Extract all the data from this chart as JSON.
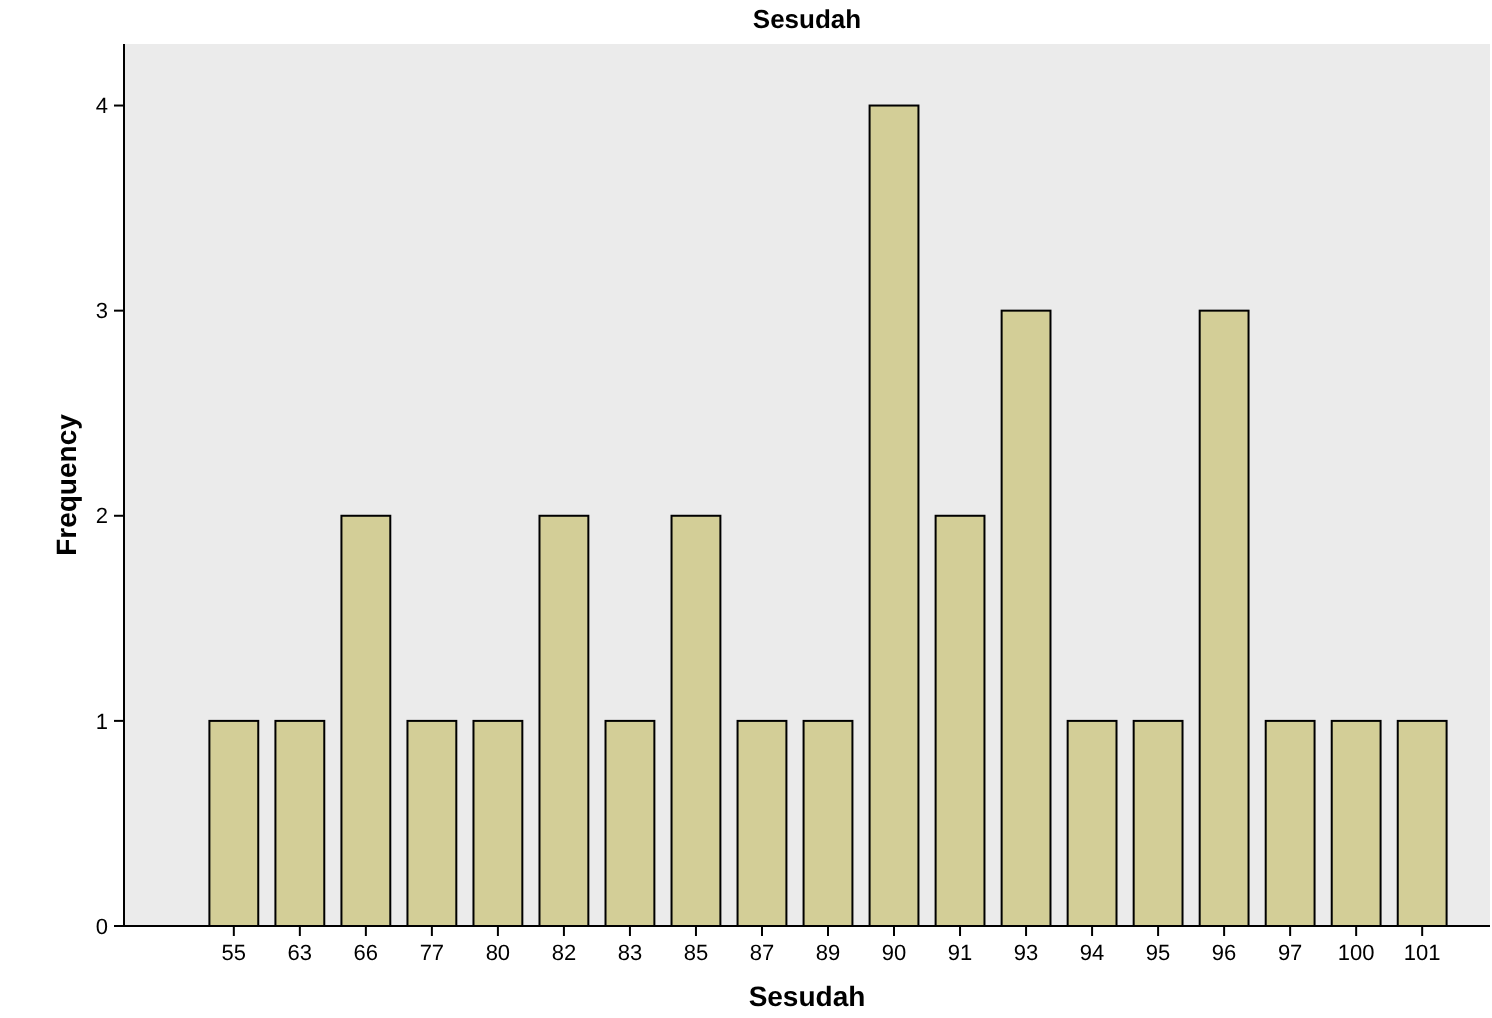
{
  "chart_data": {
    "type": "bar",
    "title": "Sesudah",
    "xlabel": "Sesudah",
    "ylabel": "Frequency",
    "categories": [
      "55",
      "63",
      "66",
      "77",
      "80",
      "82",
      "83",
      "85",
      "87",
      "89",
      "90",
      "91",
      "93",
      "94",
      "95",
      "96",
      "97",
      "100",
      "101"
    ],
    "values": [
      1,
      1,
      2,
      1,
      1,
      2,
      1,
      2,
      1,
      1,
      4,
      2,
      3,
      1,
      1,
      3,
      1,
      1,
      1
    ],
    "color": "#d3ce97",
    "ylim": [
      0,
      4.3
    ],
    "yticks": [
      0,
      1,
      2,
      3,
      4
    ],
    "grid": false
  }
}
